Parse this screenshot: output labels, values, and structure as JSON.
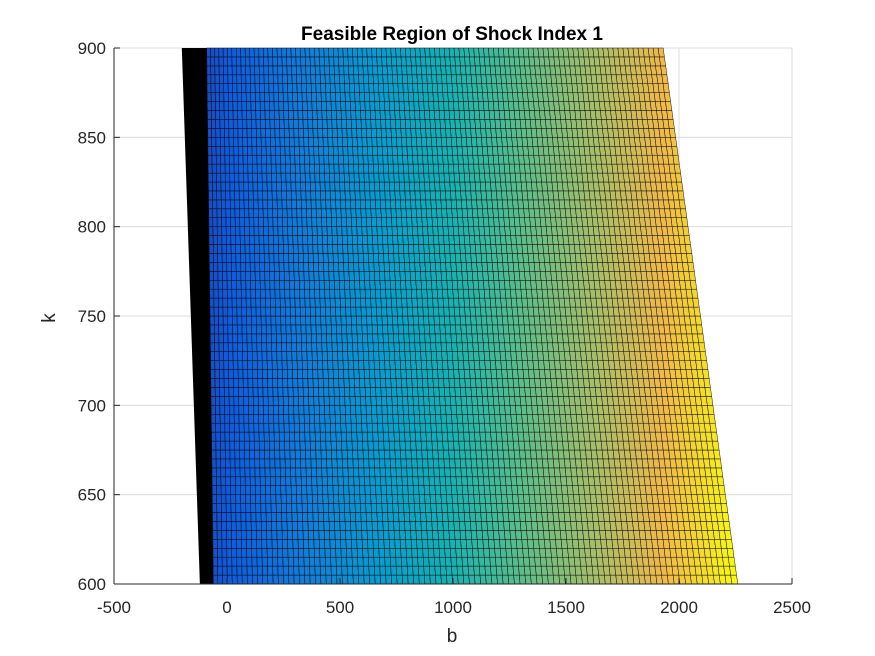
{
  "chart_data": {
    "type": "surface",
    "title": "Feasible Region of Shock Index 1",
    "xlabel": "b",
    "ylabel": "k",
    "xlim": [
      -500,
      2500
    ],
    "ylim": [
      600,
      900
    ],
    "xticks": [
      -500,
      0,
      500,
      1000,
      1500,
      2000,
      2500
    ],
    "yticks": [
      600,
      650,
      700,
      750,
      800,
      850,
      900
    ],
    "grid": true,
    "colormap": "parula",
    "region": {
      "left_boundary_b": {
        "at_k_600": -120,
        "at_k_900": -200
      },
      "right_boundary_b": {
        "at_k_600": 2260,
        "at_k_900": 1930
      },
      "dense_mesh_band_left_b": {
        "at_k_600": -60,
        "at_k_900": -90
      }
    },
    "color_gradient_direction": "increasing with b"
  },
  "colors": {
    "background": "#ffffff",
    "mesh_edge": "#000000",
    "dense_band": "#000000",
    "grid": "#dcdcdc",
    "axis": "#262626"
  }
}
